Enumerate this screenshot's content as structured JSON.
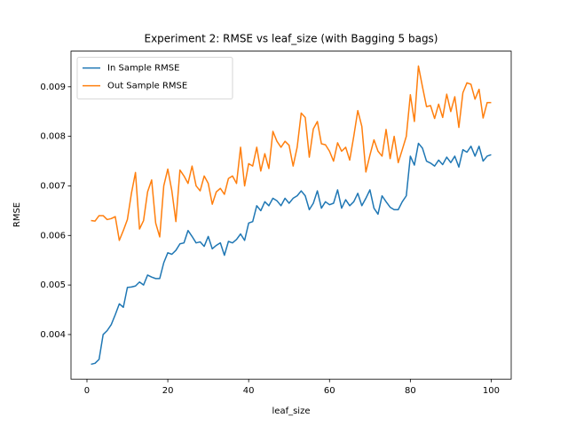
{
  "chart_data": {
    "type": "line",
    "title": "Experiment 2: RMSE vs leaf_size (with Bagging 5 bags)",
    "xlabel": "leaf_size",
    "ylabel": "RMSE",
    "x": [
      1,
      2,
      3,
      4,
      5,
      6,
      7,
      8,
      9,
      10,
      11,
      12,
      13,
      14,
      15,
      16,
      17,
      18,
      19,
      20,
      21,
      22,
      23,
      24,
      25,
      26,
      27,
      28,
      29,
      30,
      31,
      32,
      33,
      34,
      35,
      36,
      37,
      38,
      39,
      40,
      41,
      42,
      43,
      44,
      45,
      46,
      47,
      48,
      49,
      50,
      51,
      52,
      53,
      54,
      55,
      56,
      57,
      58,
      59,
      60,
      61,
      62,
      63,
      64,
      65,
      66,
      67,
      68,
      69,
      70,
      71,
      72,
      73,
      74,
      75,
      76,
      77,
      78,
      79,
      80,
      81,
      82,
      83,
      84,
      85,
      86,
      87,
      88,
      89,
      90,
      91,
      92,
      93,
      94,
      95,
      96,
      97,
      98,
      99,
      100
    ],
    "series": [
      {
        "name": "In Sample RMSE",
        "color": "#1f77b4",
        "values": [
          0.0034,
          0.00342,
          0.0035,
          0.004,
          0.00408,
          0.0042,
          0.0044,
          0.00462,
          0.00455,
          0.00495,
          0.00496,
          0.00498,
          0.00506,
          0.005,
          0.0052,
          0.00516,
          0.00513,
          0.00513,
          0.00545,
          0.00565,
          0.00562,
          0.0057,
          0.00583,
          0.00585,
          0.0061,
          0.00598,
          0.00585,
          0.00587,
          0.00578,
          0.00598,
          0.00573,
          0.0058,
          0.00585,
          0.0056,
          0.00588,
          0.00585,
          0.00592,
          0.00603,
          0.0059,
          0.00625,
          0.00628,
          0.0066,
          0.0065,
          0.00668,
          0.0066,
          0.00675,
          0.0067,
          0.0066,
          0.00675,
          0.00665,
          0.00675,
          0.0068,
          0.0069,
          0.0068,
          0.00652,
          0.00665,
          0.0069,
          0.00655,
          0.00668,
          0.00662,
          0.00665,
          0.00692,
          0.00655,
          0.00672,
          0.0066,
          0.00668,
          0.00685,
          0.0066,
          0.00675,
          0.00692,
          0.00655,
          0.00643,
          0.0068,
          0.00668,
          0.00657,
          0.00652,
          0.00652,
          0.00668,
          0.0068,
          0.0076,
          0.00742,
          0.00786,
          0.00776,
          0.0075,
          0.00746,
          0.0074,
          0.00752,
          0.00743,
          0.00758,
          0.00747,
          0.0076,
          0.00738,
          0.00773,
          0.00768,
          0.0078,
          0.0076,
          0.0078,
          0.0075,
          0.0076,
          0.00763
        ]
      },
      {
        "name": "Out Sample RMSE",
        "color": "#ff7f0e",
        "values": [
          0.0063,
          0.00629,
          0.0064,
          0.0064,
          0.00632,
          0.00634,
          0.00638,
          0.0059,
          0.0061,
          0.00632,
          0.00685,
          0.00727,
          0.00613,
          0.0063,
          0.00688,
          0.00712,
          0.00625,
          0.00597,
          0.007,
          0.00734,
          0.0069,
          0.00628,
          0.00732,
          0.0072,
          0.00705,
          0.0074,
          0.007,
          0.0069,
          0.0072,
          0.00705,
          0.00663,
          0.00688,
          0.00695,
          0.00683,
          0.00715,
          0.0072,
          0.00705,
          0.00778,
          0.007,
          0.00745,
          0.0074,
          0.00778,
          0.0073,
          0.00765,
          0.00735,
          0.0081,
          0.0079,
          0.00778,
          0.0079,
          0.00782,
          0.0074,
          0.00778,
          0.00847,
          0.00838,
          0.00758,
          0.00815,
          0.0083,
          0.00785,
          0.00783,
          0.0077,
          0.0075,
          0.00787,
          0.0077,
          0.00778,
          0.00752,
          0.008,
          0.00852,
          0.0082,
          0.00728,
          0.00762,
          0.00793,
          0.0077,
          0.0076,
          0.00814,
          0.00755,
          0.008,
          0.00747,
          0.00773,
          0.008,
          0.00884,
          0.0083,
          0.00942,
          0.009,
          0.0086,
          0.00862,
          0.00836,
          0.00865,
          0.00838,
          0.00885,
          0.0085,
          0.0088,
          0.00818,
          0.00888,
          0.00908,
          0.00905,
          0.00875,
          0.00895,
          0.00837,
          0.00868,
          0.00868
        ]
      }
    ],
    "xlim": [
      -3.95,
      104.95
    ],
    "xticks": [
      0,
      20,
      40,
      60,
      80,
      100
    ],
    "ylim": [
      0.0031,
      0.00972
    ],
    "yticks": [
      0.004,
      0.005,
      0.006,
      0.007,
      0.008,
      0.009
    ],
    "grid": false,
    "legend": "upper left"
  }
}
